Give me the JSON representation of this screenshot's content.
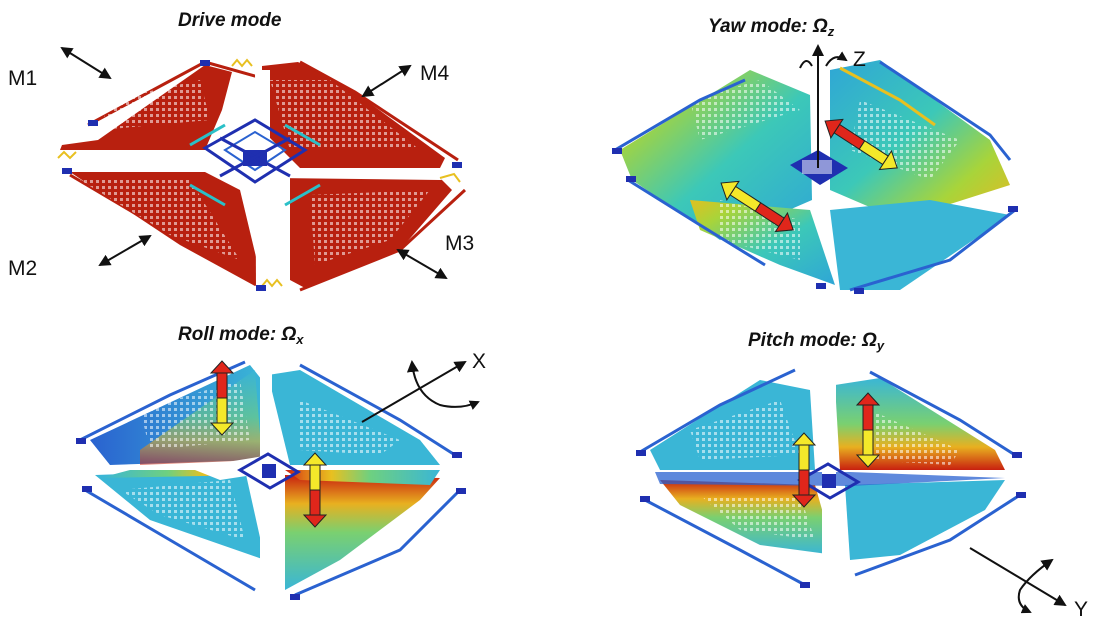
{
  "panels": {
    "drive": {
      "title": "Drive mode",
      "mass_labels": [
        "M1",
        "M2",
        "M3",
        "M4"
      ],
      "mass_color": "#b8200f"
    },
    "yaw": {
      "title_prefix": "Yaw mode: ",
      "omega_symbol": "Ω",
      "omega_sub": "z",
      "axis_label": "Z"
    },
    "roll": {
      "title_prefix": "Roll mode: ",
      "omega_symbol": "Ω",
      "omega_sub": "x",
      "axis_label": "X"
    },
    "pitch": {
      "title_prefix": "Pitch mode: ",
      "omega_symbol": "Ω",
      "omega_sub": "y",
      "axis_label": "Y"
    }
  },
  "colors": {
    "anchor_blue": "#1f2fb0",
    "frame_blue": "#2a6fd6",
    "mid_cyan": "#38b8d0",
    "hot_red": "#d42a12",
    "arrow_yellow": "#f4e82a",
    "arrow_red": "#e0261b"
  }
}
